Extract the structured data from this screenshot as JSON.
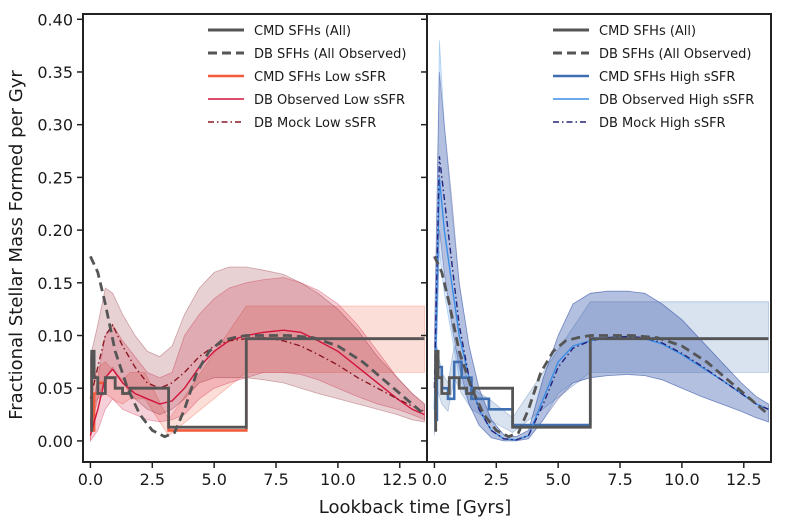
{
  "chart_data": {
    "type": "line",
    "ylabel": "Fractional Stellar Mass Formed per Gyr",
    "xlabel": "Lookback time [Gyrs]",
    "xlim": [
      -0.3,
      13.6
    ],
    "ylim": [
      -0.02,
      0.405
    ],
    "xticks": [
      "0.0",
      "2.5",
      "5.0",
      "7.5",
      "10.0",
      "12.5"
    ],
    "xtick_values": [
      0,
      2.5,
      5,
      7.5,
      10,
      12.5
    ],
    "yticks": [
      "0.00",
      "0.05",
      "0.10",
      "0.15",
      "0.20",
      "0.25",
      "0.30",
      "0.35",
      "0.40"
    ],
    "ytick_values": [
      0,
      0.05,
      0.1,
      0.15,
      0.2,
      0.25,
      0.3,
      0.35,
      0.4
    ],
    "panels": [
      {
        "name": "low-ssfr",
        "legend": [
          "CMD SFHs (All)",
          "DB SFHs (All Observed)",
          "CMD SFHs Low sSFR",
          "DB Observed Low sSFR",
          "DB Mock Low sSFR"
        ],
        "series": [
          {
            "name": "CMD SFHs Low sSFR",
            "color": "#f25a3c",
            "style": "step",
            "band": true,
            "x": [
              0,
              0.15,
              0.3,
              0.6,
              1.0,
              1.3,
              1.6,
              2.2,
              3.16,
              6.3,
              13.5
            ],
            "y": [
              0.01,
              0.045,
              0.055,
              0.06,
              0.05,
              0.045,
              0.05,
              0.05,
              0.01,
              0.097,
              0.097
            ],
            "lo": [
              0,
              0.035,
              0.04,
              0.045,
              0.038,
              0.035,
              0.04,
              0.04,
              0.005,
              0.065,
              0.065
            ],
            "hi": [
              0.02,
              0.06,
              0.07,
              0.075,
              0.065,
              0.058,
              0.065,
              0.065,
              0.02,
              0.128,
              0.128
            ]
          },
          {
            "name": "DB Observed Low sSFR",
            "color": "#d2143c",
            "style": "solid",
            "band": true,
            "x": [
              0,
              0.3,
              0.6,
              0.9,
              1.3,
              1.8,
              2.3,
              2.8,
              3.3,
              3.8,
              4.4,
              5.0,
              5.6,
              6.3,
              7.0,
              7.8,
              8.5,
              9.2,
              10.0,
              10.8,
              11.6,
              12.4,
              13.0,
              13.5
            ],
            "y": [
              0.005,
              0.03,
              0.06,
              0.068,
              0.055,
              0.045,
              0.04,
              0.035,
              0.038,
              0.05,
              0.07,
              0.085,
              0.095,
              0.1,
              0.103,
              0.105,
              0.103,
              0.095,
              0.085,
              0.07,
              0.055,
              0.04,
              0.03,
              0.025
            ],
            "lo": [
              0,
              0.01,
              0.03,
              0.04,
              0.03,
              0.025,
              0.02,
              0.018,
              0.02,
              0.025,
              0.04,
              0.05,
              0.055,
              0.06,
              0.065,
              0.065,
              0.063,
              0.058,
              0.05,
              0.042,
              0.035,
              0.03,
              0.025,
              0.02
            ],
            "hi": [
              0.02,
              0.06,
              0.1,
              0.11,
              0.095,
              0.08,
              0.065,
              0.06,
              0.065,
              0.1,
              0.12,
              0.135,
              0.145,
              0.15,
              0.153,
              0.155,
              0.15,
              0.143,
              0.13,
              0.11,
              0.085,
              0.06,
              0.045,
              0.035
            ]
          },
          {
            "name": "DB Mock Low sSFR",
            "color": "#8b1a24",
            "style": "dashdot",
            "band": true,
            "x": [
              0,
              0.3,
              0.6,
              0.9,
              1.3,
              1.8,
              2.3,
              2.8,
              3.3,
              3.8,
              4.4,
              5.0,
              5.6,
              6.3,
              7.0,
              7.8,
              8.5,
              9.2,
              10.0,
              10.8,
              11.6,
              12.4,
              13.0,
              13.5
            ],
            "y": [
              0.04,
              0.07,
              0.1,
              0.11,
              0.09,
              0.07,
              0.055,
              0.05,
              0.055,
              0.065,
              0.08,
              0.09,
              0.095,
              0.097,
              0.098,
              0.095,
              0.09,
              0.082,
              0.072,
              0.06,
              0.05,
              0.04,
              0.033,
              0.028
            ],
            "lo": [
              0.01,
              0.04,
              0.06,
              0.07,
              0.055,
              0.04,
              0.03,
              0.025,
              0.03,
              0.04,
              0.055,
              0.06,
              0.06,
              0.06,
              0.058,
              0.055,
              0.05,
              0.045,
              0.04,
              0.035,
              0.03,
              0.025,
              0.02,
              0.018
            ],
            "hi": [
              0.08,
              0.11,
              0.145,
              0.14,
              0.12,
              0.1,
              0.085,
              0.08,
              0.09,
              0.12,
              0.145,
              0.16,
              0.165,
              0.165,
              0.162,
              0.158,
              0.15,
              0.14,
              0.125,
              0.105,
              0.08,
              0.06,
              0.045,
              0.035
            ]
          }
        ]
      },
      {
        "name": "high-ssfr",
        "legend": [
          "CMD SFHs (All)",
          "DB SFHs (All Observed)",
          "CMD SFHs High sSFR",
          "DB Observed High sSFR",
          "DB Mock High sSFR"
        ],
        "series": [
          {
            "name": "CMD SFHs High sSFR",
            "color": "#3f6fb0",
            "style": "step",
            "band": true,
            "x": [
              0,
              0.1,
              0.3,
              0.55,
              0.8,
              1.1,
              1.5,
              2.2,
              3.16,
              6.3,
              13.5
            ],
            "y": [
              0.02,
              0.07,
              0.05,
              0.04,
              0.075,
              0.06,
              0.04,
              0.03,
              0.015,
              0.097,
              0.097
            ],
            "lo": [
              0.005,
              0.05,
              0.035,
              0.028,
              0.06,
              0.045,
              0.03,
              0.02,
              0.008,
              0.065,
              0.065
            ],
            "hi": [
              0.04,
              0.09,
              0.065,
              0.055,
              0.09,
              0.075,
              0.05,
              0.04,
              0.022,
              0.132,
              0.132
            ]
          },
          {
            "name": "DB Observed High sSFR",
            "color": "#3a8ee6",
            "style": "solid",
            "band": true,
            "x": [
              0,
              0.2,
              0.4,
              0.7,
              1.0,
              1.4,
              1.8,
              2.3,
              2.8,
              3.3,
              3.8,
              4.4,
              5.0,
              5.6,
              6.3,
              7.0,
              7.8,
              8.5,
              9.2,
              10.0,
              10.8,
              11.6,
              12.4,
              13.0,
              13.5
            ],
            "y": [
              0.03,
              0.25,
              0.2,
              0.15,
              0.1,
              0.06,
              0.03,
              0.01,
              0.002,
              0.001,
              0.005,
              0.04,
              0.075,
              0.09,
              0.095,
              0.098,
              0.098,
              0.097,
              0.092,
              0.082,
              0.07,
              0.058,
              0.045,
              0.035,
              0.03
            ],
            "lo": [
              0.01,
              0.18,
              0.14,
              0.1,
              0.06,
              0.035,
              0.015,
              0.003,
              0,
              0,
              0.002,
              0.02,
              0.045,
              0.055,
              0.06,
              0.062,
              0.063,
              0.062,
              0.058,
              0.05,
              0.042,
              0.035,
              0.028,
              0.022,
              0.018
            ],
            "hi": [
              0.06,
              0.38,
              0.3,
              0.22,
              0.15,
              0.09,
              0.05,
              0.02,
              0.006,
              0.004,
              0.01,
              0.06,
              0.1,
              0.13,
              0.14,
              0.142,
              0.142,
              0.14,
              0.13,
              0.115,
              0.095,
              0.075,
              0.055,
              0.042,
              0.035
            ]
          },
          {
            "name": "DB Mock High sSFR",
            "color": "#23237a",
            "style": "dashdot",
            "band": true,
            "x": [
              0,
              0.2,
              0.4,
              0.7,
              1.0,
              1.4,
              1.8,
              2.3,
              2.8,
              3.3,
              3.8,
              4.4,
              5.0,
              5.6,
              6.3,
              7.0,
              7.8,
              8.5,
              9.2,
              10.0,
              10.8,
              11.6,
              12.4,
              13.0,
              13.5
            ],
            "y": [
              0.05,
              0.27,
              0.23,
              0.17,
              0.11,
              0.06,
              0.03,
              0.01,
              0.002,
              0.001,
              0.005,
              0.035,
              0.07,
              0.088,
              0.095,
              0.098,
              0.099,
              0.098,
              0.093,
              0.083,
              0.071,
              0.058,
              0.045,
              0.035,
              0.03
            ],
            "lo": [
              0.02,
              0.2,
              0.16,
              0.11,
              0.07,
              0.035,
              0.015,
              0.003,
              0,
              0,
              0.002,
              0.02,
              0.04,
              0.055,
              0.06,
              0.062,
              0.063,
              0.062,
              0.058,
              0.05,
              0.042,
              0.035,
              0.028,
              0.022,
              0.018
            ],
            "hi": [
              0.1,
              0.35,
              0.3,
              0.23,
              0.15,
              0.09,
              0.05,
              0.02,
              0.006,
              0.004,
              0.01,
              0.06,
              0.1,
              0.13,
              0.14,
              0.142,
              0.142,
              0.14,
              0.13,
              0.115,
              0.095,
              0.075,
              0.055,
              0.042,
              0.035
            ]
          }
        ]
      }
    ],
    "shared_series": [
      {
        "name": "CMD SFHs (All)",
        "color": "#555555",
        "style": "step",
        "x": [
          0,
          0.05,
          0.15,
          0.3,
          0.6,
          1.0,
          1.3,
          1.6,
          2.2,
          3.16,
          6.3,
          13.5
        ],
        "y": [
          0.01,
          0.085,
          0.06,
          0.045,
          0.06,
          0.05,
          0.045,
          0.05,
          0.05,
          0.013,
          0.097,
          0.097
        ]
      },
      {
        "name": "DB SFHs (All Observed)",
        "color": "#555555",
        "style": "dashed",
        "x": [
          0,
          0.3,
          0.6,
          1.0,
          1.5,
          2.0,
          2.5,
          3.0,
          3.4,
          3.8,
          4.3,
          4.8,
          5.3,
          5.8,
          6.3,
          7.0,
          8.0,
          9.0,
          10.0,
          11.0,
          12.0,
          13.0,
          13.5
        ],
        "y": [
          0.175,
          0.16,
          0.13,
          0.085,
          0.05,
          0.025,
          0.01,
          0.004,
          0.008,
          0.03,
          0.065,
          0.085,
          0.095,
          0.098,
          0.1,
          0.1,
          0.1,
          0.098,
          0.09,
          0.075,
          0.055,
          0.035,
          0.025
        ]
      }
    ]
  }
}
